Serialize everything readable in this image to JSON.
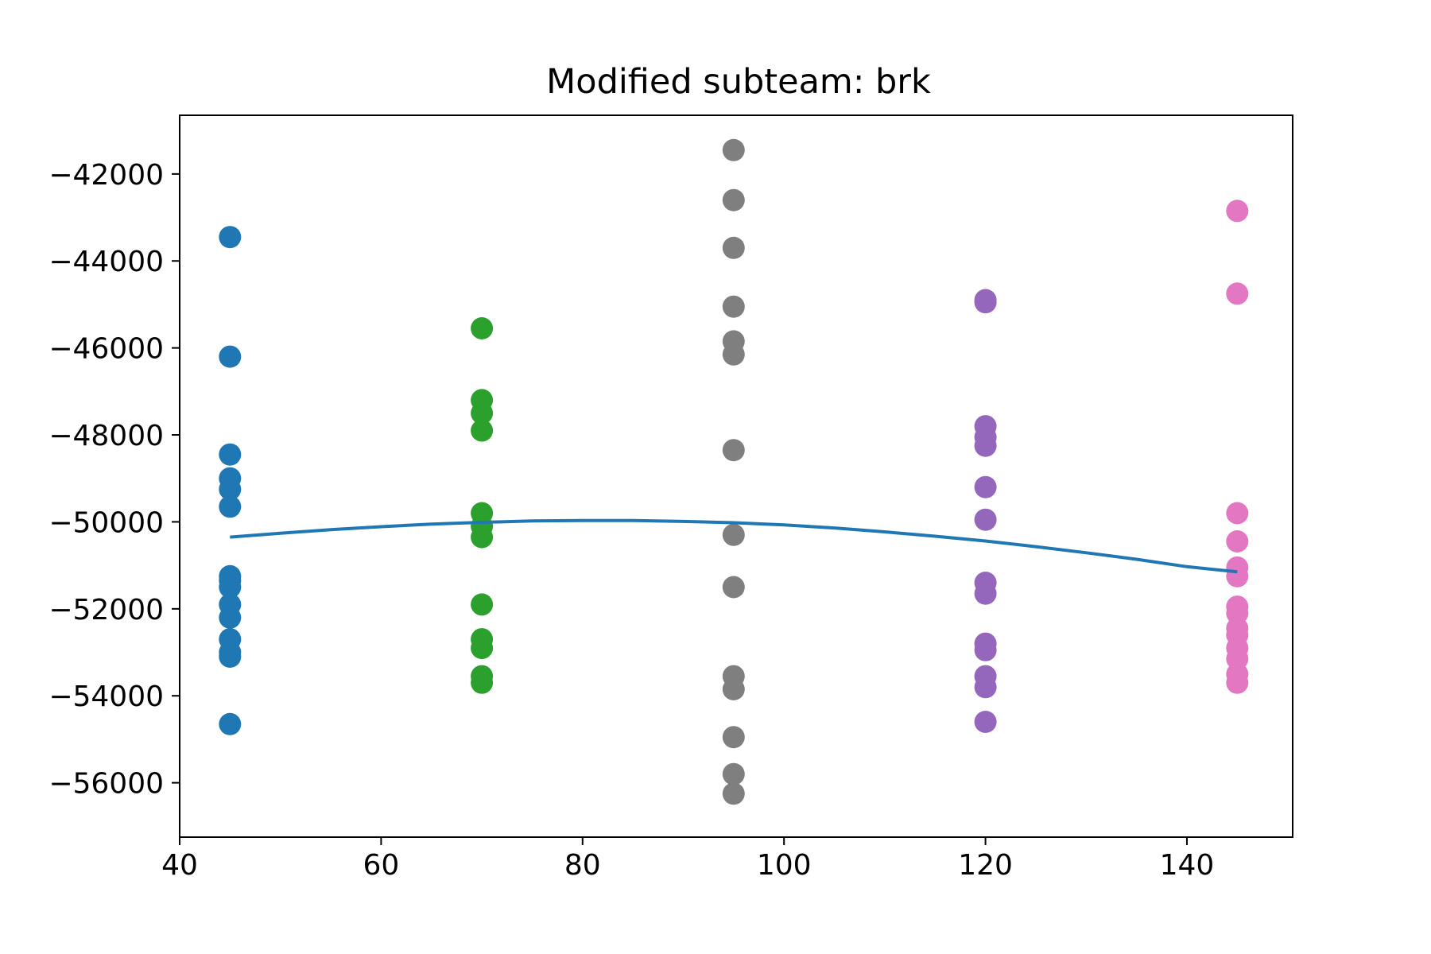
{
  "chart_data": {
    "type": "scatter",
    "title": "Modified subteam: brk",
    "xlabel": "",
    "ylabel": "",
    "xlim": [
      40,
      150.5
    ],
    "ylim": [
      -57250,
      -40650
    ],
    "xticks": [
      40,
      60,
      80,
      100,
      120,
      140
    ],
    "yticks": [
      -42000,
      -44000,
      -46000,
      -48000,
      -50000,
      -52000,
      -54000,
      -56000
    ],
    "xtick_labels": [
      "40",
      "60",
      "80",
      "100",
      "120",
      "140"
    ],
    "ytick_labels": [
      "−42000",
      "−44000",
      "−46000",
      "−48000",
      "−50000",
      "−52000",
      "−54000",
      "−56000"
    ],
    "grid": false,
    "series": [
      {
        "color": "#1f77b4",
        "points": [
          [
            45,
            -43450
          ],
          [
            45,
            -46200
          ],
          [
            45,
            -48450
          ],
          [
            45,
            -49000
          ],
          [
            45,
            -49250
          ],
          [
            45,
            -49650
          ],
          [
            45,
            -51250
          ],
          [
            45,
            -51350
          ],
          [
            45,
            -51500
          ],
          [
            45,
            -51900
          ],
          [
            45,
            -52200
          ],
          [
            45,
            -52700
          ],
          [
            45,
            -53000
          ],
          [
            45,
            -53100
          ],
          [
            45,
            -54650
          ]
        ]
      },
      {
        "color": "#2ca02c",
        "points": [
          [
            70,
            -45550
          ],
          [
            70,
            -47200
          ],
          [
            70,
            -47500
          ],
          [
            70,
            -47900
          ],
          [
            70,
            -49800
          ],
          [
            70,
            -50100
          ],
          [
            70,
            -50350
          ],
          [
            70,
            -51900
          ],
          [
            70,
            -52700
          ],
          [
            70,
            -52900
          ],
          [
            70,
            -53550
          ],
          [
            70,
            -53700
          ]
        ]
      },
      {
        "color": "#7f7f7f",
        "points": [
          [
            95,
            -41450
          ],
          [
            95,
            -42600
          ],
          [
            95,
            -43700
          ],
          [
            95,
            -45050
          ],
          [
            95,
            -45850
          ],
          [
            95,
            -46150
          ],
          [
            95,
            -48350
          ],
          [
            95,
            -50300
          ],
          [
            95,
            -51500
          ],
          [
            95,
            -53550
          ],
          [
            95,
            -53850
          ],
          [
            95,
            -54950
          ],
          [
            95,
            -55800
          ],
          [
            95,
            -56250
          ]
        ]
      },
      {
        "color": "#9467bd",
        "points": [
          [
            120,
            -44900
          ],
          [
            120,
            -44950
          ],
          [
            120,
            -47800
          ],
          [
            120,
            -48050
          ],
          [
            120,
            -48250
          ],
          [
            120,
            -49200
          ],
          [
            120,
            -49950
          ],
          [
            120,
            -51400
          ],
          [
            120,
            -51650
          ],
          [
            120,
            -52800
          ],
          [
            120,
            -52950
          ],
          [
            120,
            -53550
          ],
          [
            120,
            -53800
          ],
          [
            120,
            -54600
          ]
        ]
      },
      {
        "color": "#e377c2",
        "points": [
          [
            145,
            -42850
          ],
          [
            145,
            -44750
          ],
          [
            145,
            -49800
          ],
          [
            145,
            -50450
          ],
          [
            145,
            -51050
          ],
          [
            145,
            -51250
          ],
          [
            145,
            -51950
          ],
          [
            145,
            -52100
          ],
          [
            145,
            -52450
          ],
          [
            145,
            -52600
          ],
          [
            145,
            -52900
          ],
          [
            145,
            -53150
          ],
          [
            145,
            -53500
          ],
          [
            145,
            -53700
          ]
        ]
      }
    ],
    "fit_line": {
      "color": "#1f77b4",
      "x": [
        45,
        50,
        55,
        60,
        65,
        70,
        75,
        80,
        85,
        90,
        95,
        100,
        105,
        110,
        115,
        120,
        125,
        130,
        135,
        140,
        145
      ],
      "y": [
        -50350,
        -50260,
        -50180,
        -50110,
        -50050,
        -50010,
        -49980,
        -49970,
        -49970,
        -49990,
        -50020,
        -50070,
        -50140,
        -50230,
        -50330,
        -50440,
        -50570,
        -50710,
        -50860,
        -51030,
        -51150
      ]
    }
  }
}
